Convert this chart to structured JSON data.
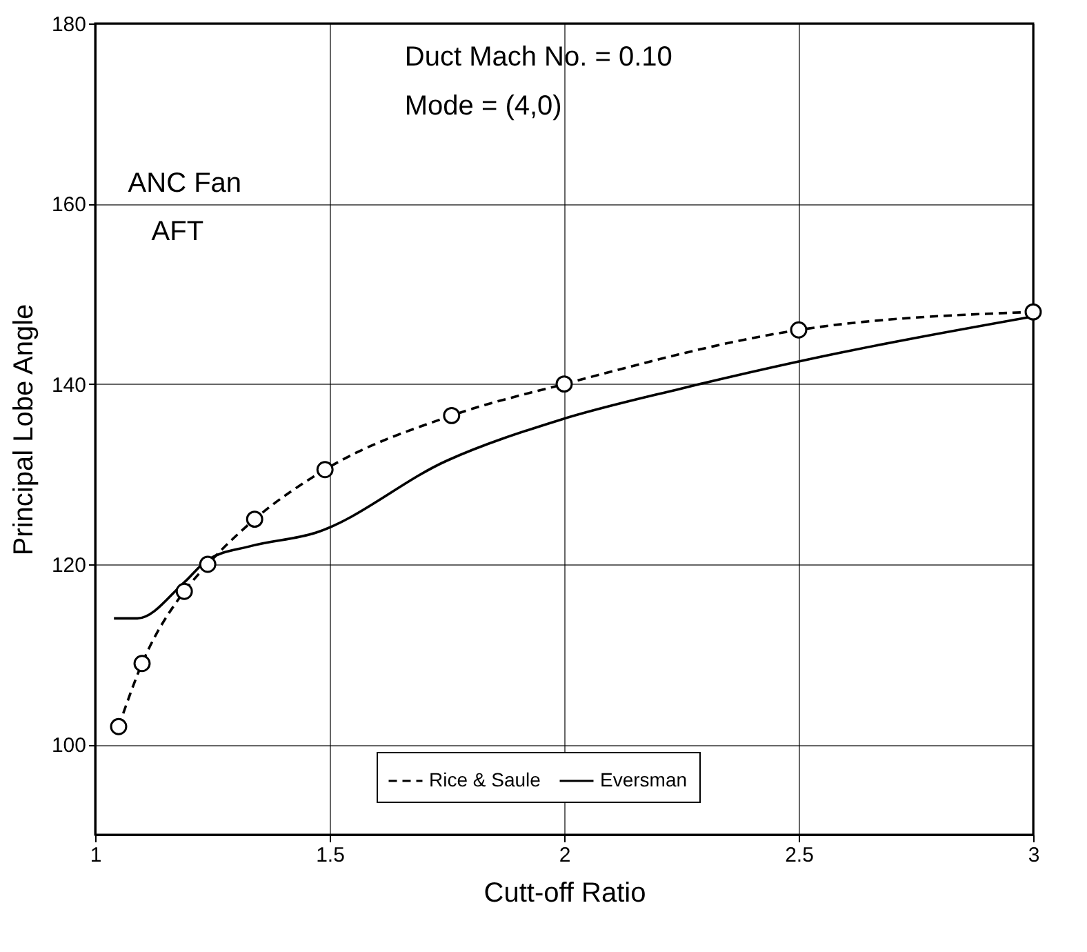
{
  "chart_data": {
    "type": "line",
    "xlabel": "Cutt-off Ratio",
    "ylabel": "Principal Lobe Angle",
    "annotations": [
      "ANC Fan",
      "AFT",
      "Duct Mach No. = 0.10",
      "Mode = (4,0)"
    ],
    "xlim": [
      1,
      3
    ],
    "xticks": [
      1,
      1.5,
      2,
      2.5,
      3
    ],
    "ylim": [
      90,
      180
    ],
    "yticks": [
      100,
      120,
      140,
      160,
      180
    ],
    "grid": true,
    "legend": "bottom",
    "series": [
      {
        "name": "Rice & Saule",
        "color": "#000000",
        "marker": "circle",
        "line_style": "dashed",
        "x": [
          1.05,
          1.1,
          1.19,
          1.24,
          1.34,
          1.49,
          1.76,
          2.0,
          2.5,
          3.0
        ],
        "values": [
          102,
          109,
          117,
          120,
          125,
          130.5,
          136.5,
          140,
          146,
          148
        ]
      },
      {
        "name": "Eversman",
        "color": "#000000",
        "marker": "none",
        "line_style": "solid",
        "x": [
          1.04,
          1.09,
          1.19,
          1.24,
          1.33,
          1.47,
          1.75,
          1.99,
          2.25,
          2.5,
          3.0
        ],
        "values": [
          114,
          114,
          118,
          120.5,
          122,
          123.5,
          131.5,
          136,
          139.5,
          142.5,
          147.5
        ]
      }
    ]
  }
}
